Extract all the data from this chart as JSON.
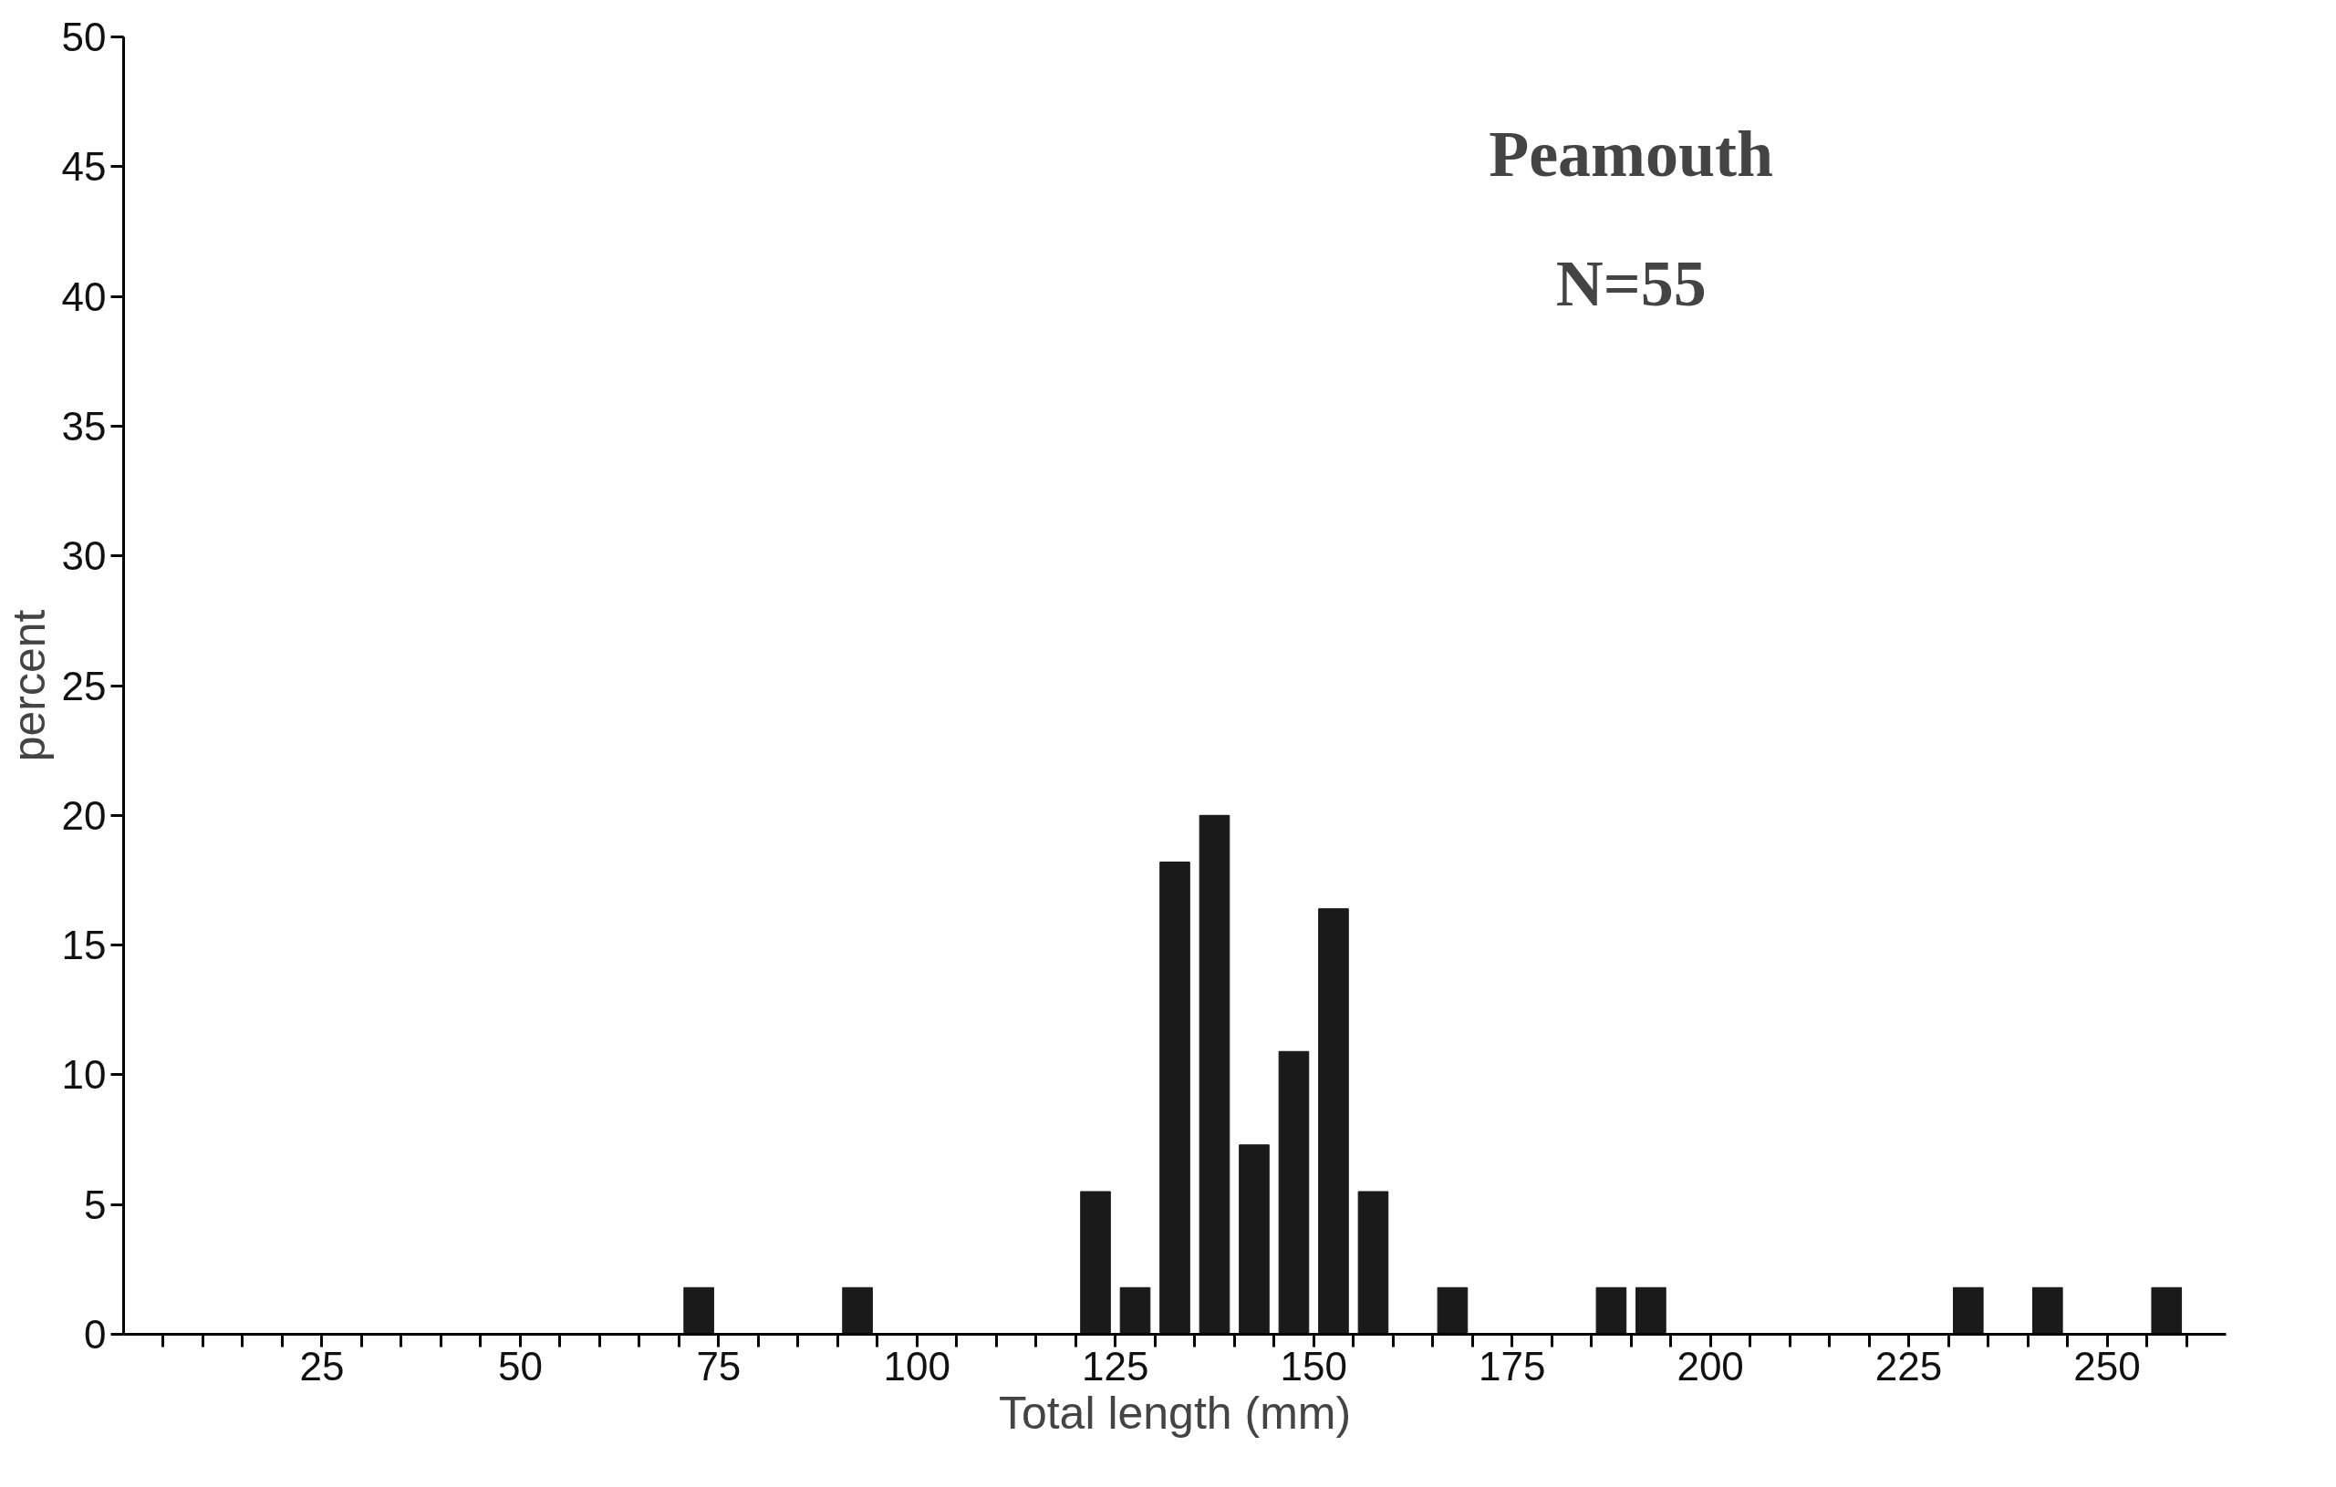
{
  "chart_data": {
    "type": "histogram",
    "title": "Peamouth",
    "subtitle": "N=55",
    "xlabel": "Total length (mm)",
    "ylabel": "percent",
    "bins": [
      70,
      75,
      80,
      85,
      90,
      95,
      100,
      105,
      110,
      115,
      120,
      125,
      130,
      135,
      140,
      145,
      150,
      155,
      160,
      165,
      170,
      175,
      180,
      185,
      190,
      195,
      200,
      205,
      210,
      215,
      220,
      225,
      230,
      235,
      240,
      245,
      250,
      255,
      260
    ],
    "values": [
      1.8,
      0,
      0,
      0,
      1.8,
      0,
      0,
      0,
      0,
      0,
      5.5,
      1.8,
      18.2,
      20,
      7.3,
      10.9,
      16.4,
      5.5,
      0,
      1.8,
      0,
      0,
      0,
      1.8,
      1.8,
      0,
      0,
      0,
      0,
      0,
      0,
      0,
      1.8,
      0,
      1.8,
      0,
      0,
      1.8
    ],
    "color": "#1a1a1a",
    "xlim": [
      0,
      265
    ],
    "xticks": [
      {
        "value": 5,
        "label": null
      },
      {
        "value": 10,
        "label": null
      },
      {
        "value": 15,
        "label": null
      },
      {
        "value": 20,
        "label": null
      },
      25,
      {
        "value": 30,
        "label": null
      },
      {
        "value": 35,
        "label": null
      },
      {
        "value": 40,
        "label": null
      },
      {
        "value": 45,
        "label": null
      },
      50,
      {
        "value": 55,
        "label": null
      },
      {
        "value": 60,
        "label": null
      },
      {
        "value": 65,
        "label": null
      },
      {
        "value": 70,
        "label": null
      },
      75,
      {
        "value": 80,
        "label": null
      },
      {
        "value": 85,
        "label": null
      },
      {
        "value": 90,
        "label": null
      },
      {
        "value": 95,
        "label": null
      },
      100,
      {
        "value": 105,
        "label": null
      },
      {
        "value": 110,
        "label": null
      },
      {
        "value": 115,
        "label": null
      },
      {
        "value": 120,
        "label": null
      },
      125,
      {
        "value": 130,
        "label": null
      },
      {
        "value": 135,
        "label": null
      },
      {
        "value": 140,
        "label": null
      },
      {
        "value": 145,
        "label": null
      },
      150,
      {
        "value": 155,
        "label": null
      },
      {
        "value": 160,
        "label": null
      },
      {
        "value": 165,
        "label": null
      },
      {
        "value": 170,
        "label": null
      },
      175,
      {
        "value": 180,
        "label": null
      },
      {
        "value": 185,
        "label": null
      },
      {
        "value": 190,
        "label": null
      },
      {
        "value": 195,
        "label": null
      },
      200,
      {
        "value": 205,
        "label": null
      },
      {
        "value": 210,
        "label": null
      },
      {
        "value": 215,
        "label": null
      },
      {
        "value": 220,
        "label": null
      },
      225,
      {
        "value": 230,
        "label": null
      },
      {
        "value": 235,
        "label": null
      },
      {
        "value": 240,
        "label": null
      },
      {
        "value": 245,
        "label": null
      },
      250,
      {
        "value": 255,
        "label": null
      },
      {
        "value": 260,
        "label": null
      }
    ],
    "ylim": [
      0,
      50
    ],
    "yticks": [
      0,
      5,
      10,
      15,
      20,
      25,
      30,
      35,
      40,
      45,
      50
    ],
    "grid": false
  }
}
